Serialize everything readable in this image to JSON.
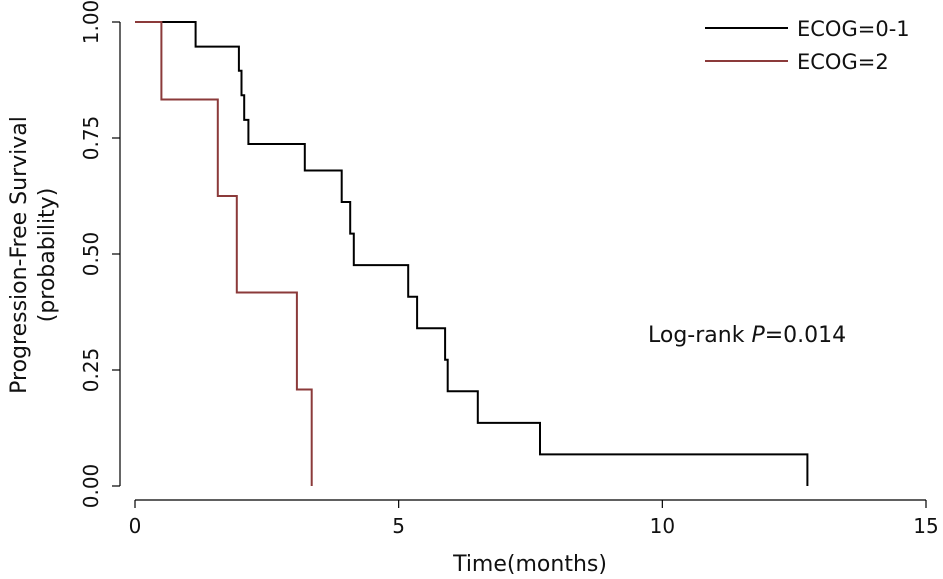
{
  "chart_data": {
    "type": "line",
    "subtype": "kaplan-meier step",
    "xlabel": "Time(months)",
    "ylabel_line1": "Progression-Free Survival",
    "ylabel_line2": "(probability)",
    "xlim": [
      0,
      15
    ],
    "ylim": [
      0,
      1
    ],
    "xticks": [
      "0",
      "5",
      "10",
      "15"
    ],
    "yticks": [
      "0.00",
      "0.25",
      "0.50",
      "0.75",
      "1.00"
    ],
    "grid": false,
    "legend_position": "top-right",
    "annotation_prefix": "Log-rank ",
    "annotation_italic": "P",
    "annotation_suffix": "=0.014",
    "series": [
      {
        "name": "ECOG=0-1",
        "color": "#000000",
        "x": [
          0,
          1.15,
          1.15,
          1.97,
          1.97,
          2.02,
          2.02,
          2.07,
          2.07,
          2.15,
          2.15,
          2.22,
          2.22,
          3.22,
          3.22,
          3.92,
          3.92,
          4.08,
          4.08,
          4.15,
          4.15,
          5.18,
          5.18,
          5.35,
          5.35,
          5.88,
          5.88,
          5.93,
          5.93,
          6.5,
          6.5,
          7.68,
          7.68,
          12.75,
          12.75
        ],
        "y": [
          1.0,
          1.0,
          0.947,
          0.947,
          0.895,
          0.895,
          0.842,
          0.842,
          0.789,
          0.789,
          0.737,
          0.737,
          0.737,
          0.737,
          0.68,
          0.68,
          0.612,
          0.612,
          0.544,
          0.544,
          0.476,
          0.476,
          0.408,
          0.408,
          0.34,
          0.34,
          0.272,
          0.272,
          0.204,
          0.204,
          0.136,
          0.136,
          0.068,
          0.068,
          0.0
        ]
      },
      {
        "name": "ECOG=2",
        "color": "#8b3a3a",
        "x": [
          0,
          0.5,
          0.5,
          1.57,
          1.57,
          1.93,
          1.93,
          3.07,
          3.07,
          3.35,
          3.35
        ],
        "y": [
          1.0,
          1.0,
          0.833,
          0.833,
          0.625,
          0.625,
          0.417,
          0.417,
          0.208,
          0.208,
          0.0
        ]
      }
    ]
  }
}
